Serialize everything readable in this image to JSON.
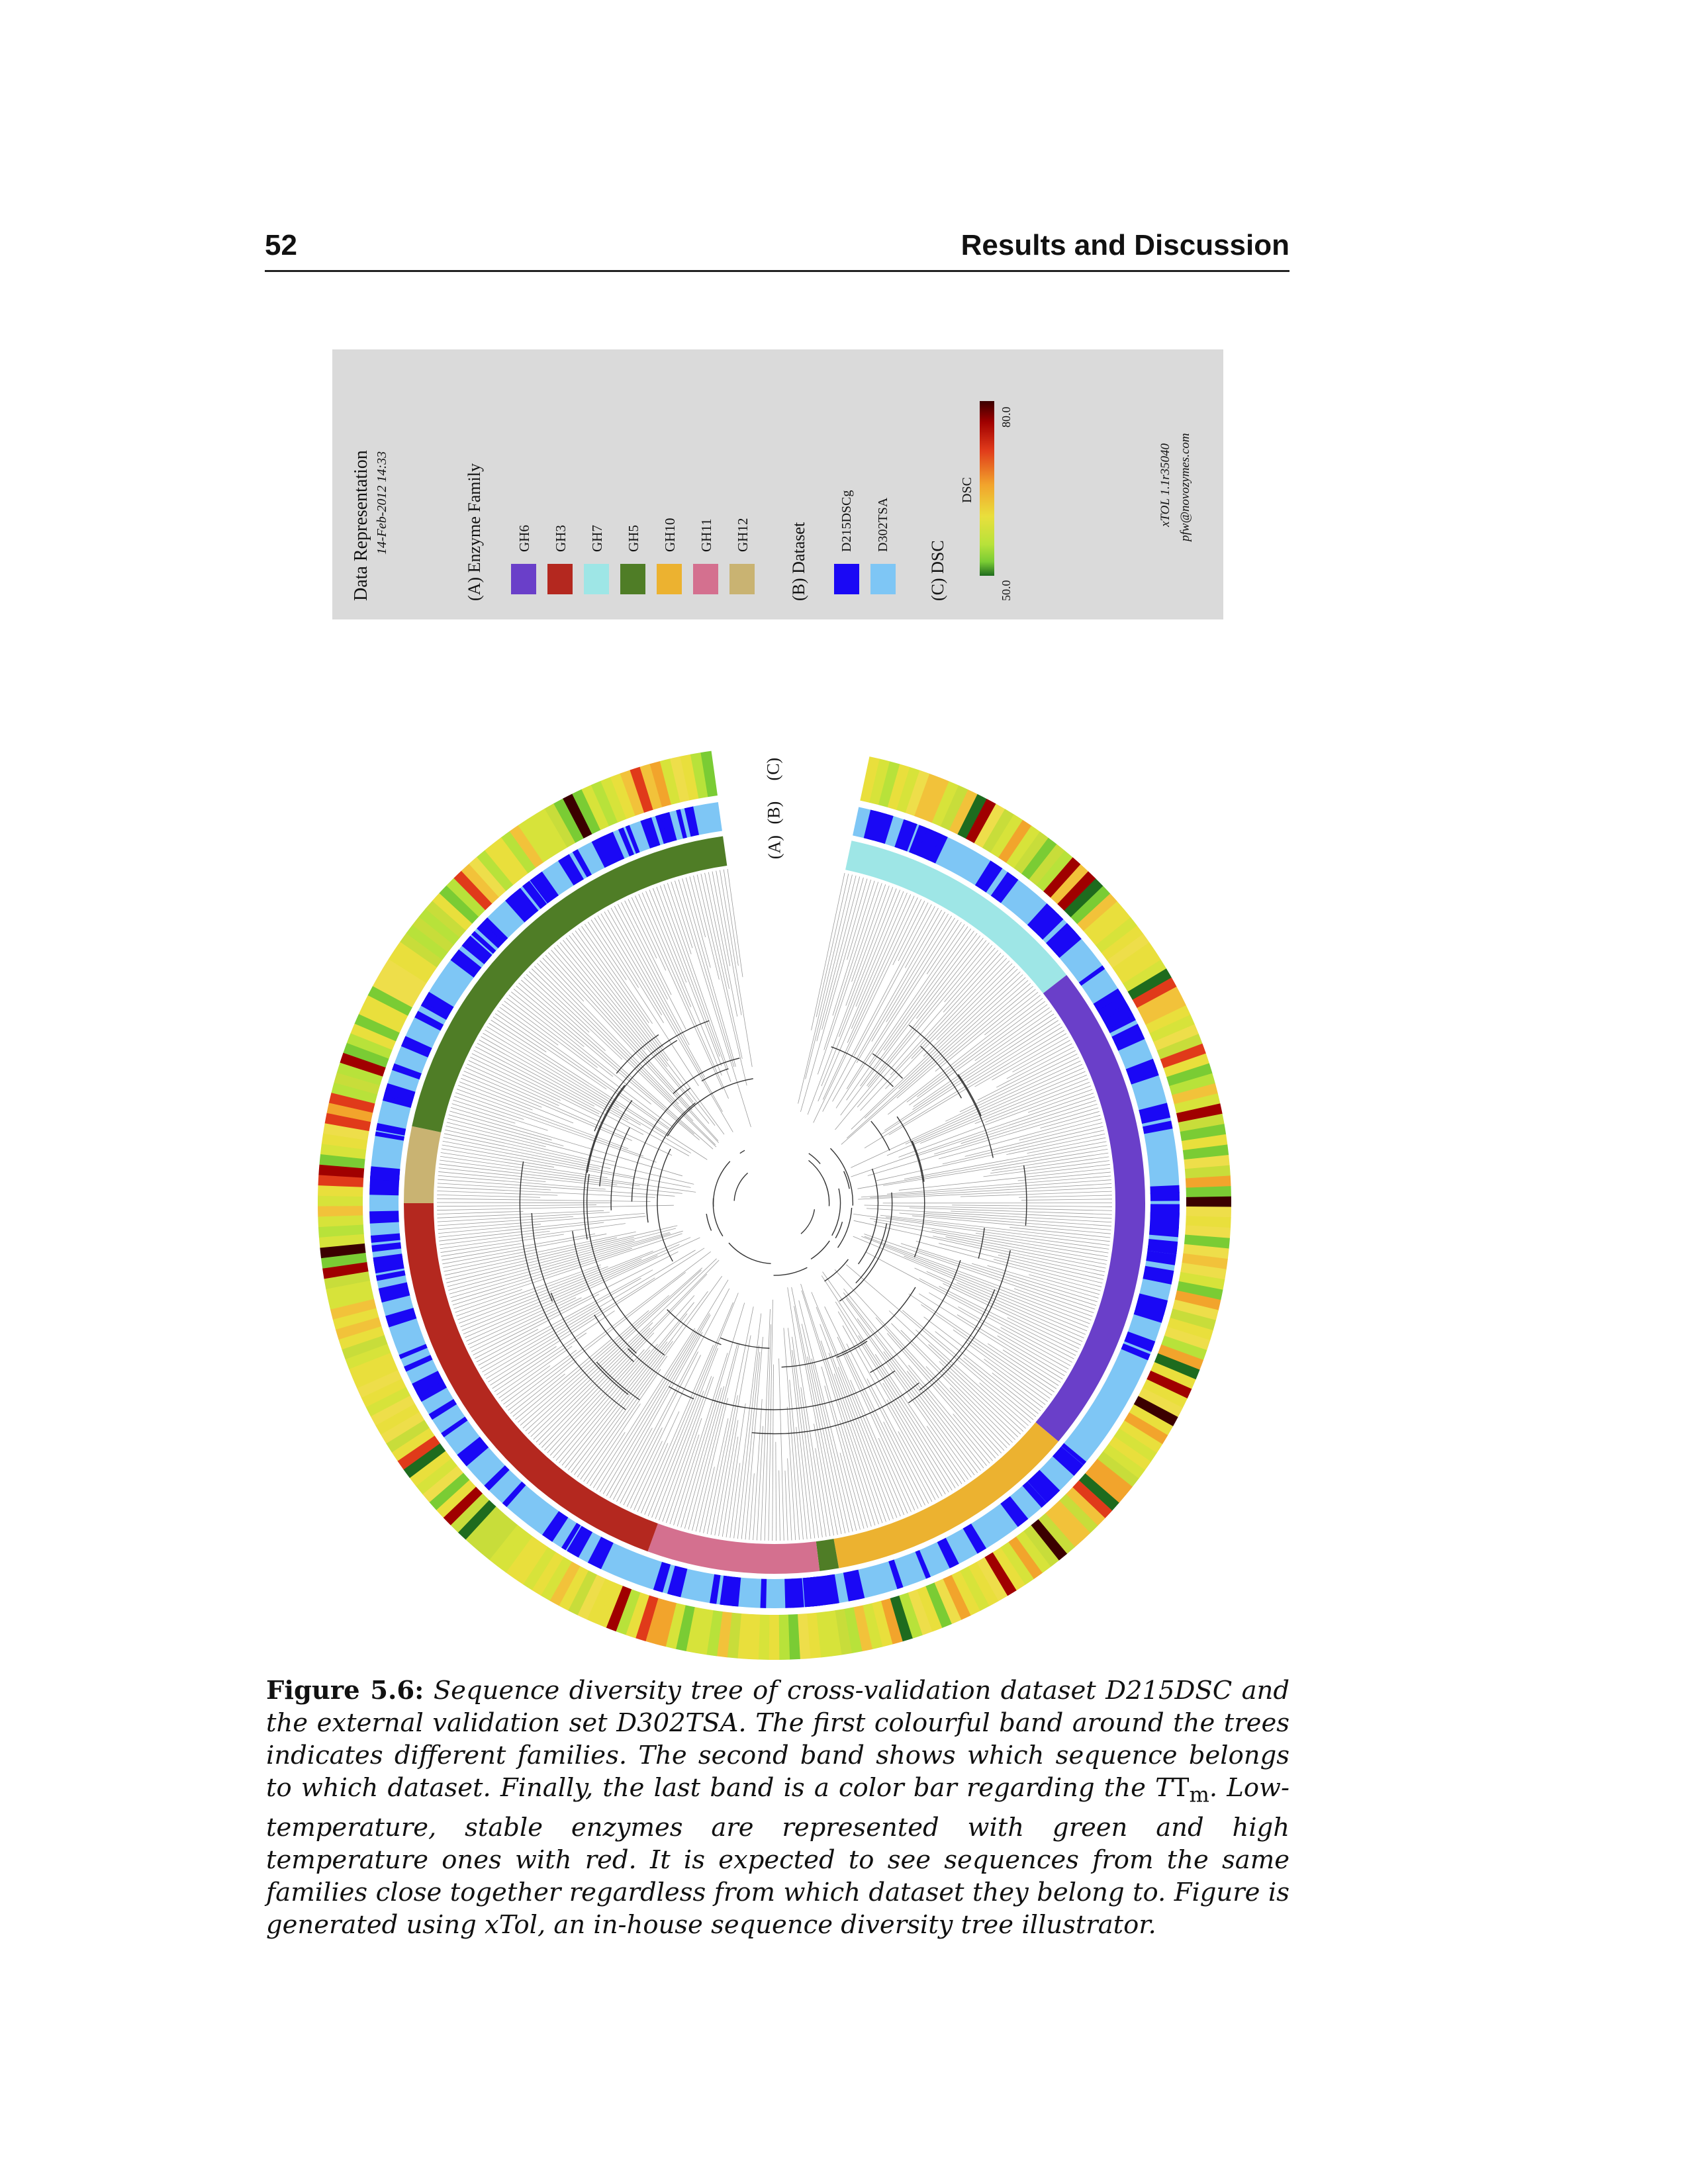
{
  "header": {
    "page_number": "52",
    "running_title": "Results and Discussion"
  },
  "legend": {
    "title": "Data Representation",
    "date": "14-Feb-2012 14:33",
    "section_a_title": "(A) Enzyme Family",
    "families": [
      {
        "label": "GH6",
        "color": "#6a3fc9"
      },
      {
        "label": "GH3",
        "color": "#b4281f"
      },
      {
        "label": "GH7",
        "color": "#9ee6e6"
      },
      {
        "label": "GH5",
        "color": "#4f7d26"
      },
      {
        "label": "GH10",
        "color": "#ecb230"
      },
      {
        "label": "GH11",
        "color": "#d4708f"
      },
      {
        "label": "GH12",
        "color": "#c9b372"
      }
    ],
    "section_b_title": "(B) Dataset",
    "datasets": [
      {
        "label": "D215DSCg",
        "color": "#1a08f5"
      },
      {
        "label": "D302TSA",
        "color": "#7ec6f5"
      }
    ],
    "section_c_title": "(C) DSC",
    "dsc_axis_label": "DSC",
    "dsc_min": "50.0",
    "dsc_max": "80.0",
    "credit_version": "xTOL 1.1r35040",
    "credit_email": "pfw@novozymes.com"
  },
  "figure": {
    "ring_labels": [
      "(A)",
      "(B)",
      "(C)"
    ]
  },
  "caption": {
    "label": "Figure 5.6:",
    "text": "Sequence diversity tree of cross-validation dataset D215DSC and the external validation set D302TSA. The first colourful band around the trees indicates different families. The second band shows which sequence belongs to which dataset. Finally, the last band is a color bar regarding the T",
    "subscript": "m",
    "text_end": ". Low-temperature, stable enzymes are represented with green and high temperature ones with red. It is expected to see sequences from the same families close together regardless from which dataset they belong to. Figure is generated using xTol, an in-house sequence diversity tree illustrator."
  }
}
